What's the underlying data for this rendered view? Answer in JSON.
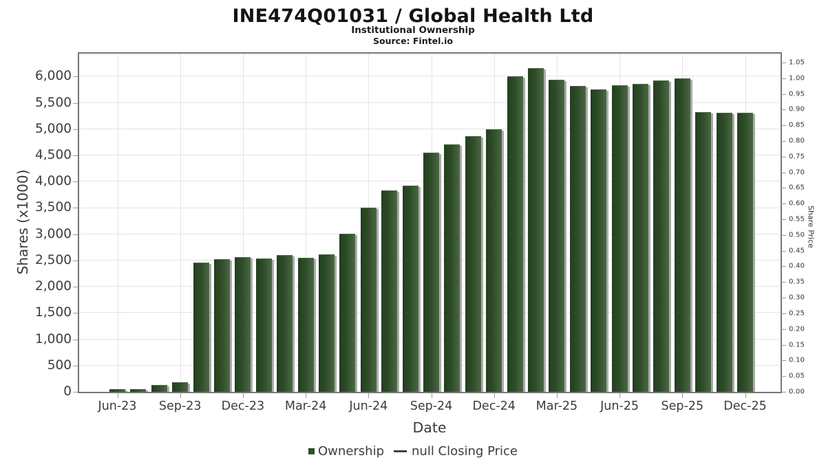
{
  "header": {
    "title": "INE474Q01031 / Global Health Ltd",
    "subtitle": "Institutional Ownership",
    "source": "Source: Fintel.io"
  },
  "chart_data": {
    "type": "bar",
    "title": "INE474Q01031 / Global Health Ltd",
    "subtitle": "Institutional Ownership",
    "source": "Source: Fintel.io",
    "xlabel": "Date",
    "ylabel_left": "Shares (x1000)",
    "ylabel_right": "Share Price",
    "categories": [
      "Jun-23",
      "Jul-23",
      "Aug-23",
      "Sep-23",
      "Oct-23",
      "Nov-23",
      "Dec-23",
      "Jan-24",
      "Feb-24",
      "Mar-24",
      "Apr-24",
      "May-24",
      "Jun-24",
      "Jul-24",
      "Aug-24",
      "Sep-24",
      "Oct-24",
      "Nov-24",
      "Dec-24",
      "Jan-25",
      "Feb-25",
      "Mar-25",
      "Apr-25",
      "May-25",
      "Jun-25",
      "Jul-25",
      "Aug-25",
      "Sep-25",
      "Oct-25",
      "Nov-25",
      "Dec-25"
    ],
    "values": [
      45,
      40,
      120,
      165,
      2450,
      2510,
      2550,
      2520,
      2590,
      2540,
      2610,
      3000,
      3490,
      3820,
      3910,
      4540,
      4700,
      4850,
      4990,
      5990,
      6150,
      5930,
      5810,
      5740,
      5820,
      5850,
      5910,
      5950,
      5310,
      5300,
      5300
    ],
    "series_name": "Ownership",
    "x_tick_labels": [
      "Jun-23",
      "Sep-23",
      "Dec-23",
      "Mar-24",
      "Jun-24",
      "Sep-24",
      "Dec-24",
      "Mar-25",
      "Jun-25",
      "Sep-25",
      "Dec-25"
    ],
    "x_tick_every_months": 3,
    "y_left_ticks": [
      "0",
      "500",
      "1,000",
      "1,500",
      "2,000",
      "2,500",
      "3,000",
      "3,500",
      "4,000",
      "4,500",
      "5,000",
      "5,500",
      "6,000"
    ],
    "y_left_step": 500,
    "ylim_left": [
      0,
      6440
    ],
    "y_right_ticks": [
      "0.00",
      "0.05",
      "0.10",
      "0.15",
      "0.20",
      "0.25",
      "0.30",
      "0.35",
      "0.40",
      "0.45",
      "0.50",
      "0.55",
      "0.60",
      "0.65",
      "0.70",
      "0.75",
      "0.80",
      "0.85",
      "0.90",
      "0.95",
      "1.00",
      "1.05"
    ],
    "y_right_step": 0.05,
    "ylim_right": [
      0,
      1.05
    ],
    "grid": true,
    "legend_position": "bottom-center",
    "legend": [
      {
        "label": "Ownership",
        "marker": "square",
        "color": "#2d5129"
      },
      {
        "label": "null Closing Price",
        "marker": "dash",
        "color": "#414141"
      }
    ],
    "colors": {
      "bar_gradient_left": "#223f1e",
      "bar_gradient_right": "#4b6845",
      "bar_shadow": "#ababab",
      "gridline": "#e4e4e4",
      "plot_border": "#767676",
      "tick_text": "#3d3d3d"
    }
  }
}
